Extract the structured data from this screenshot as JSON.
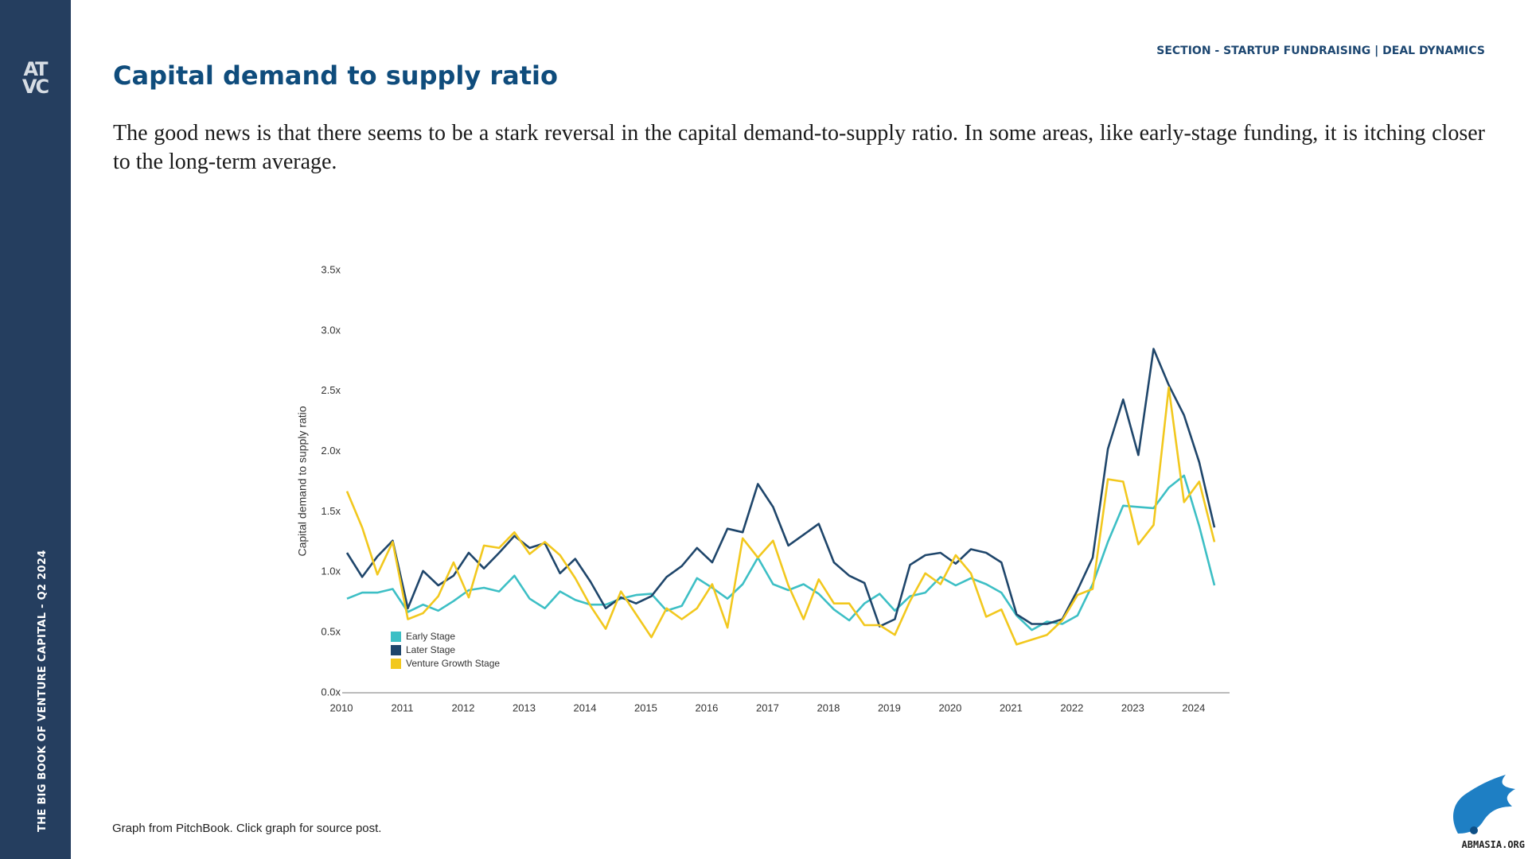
{
  "sidebar": {
    "logo": [
      "AT",
      "VC"
    ],
    "text": "THE BIG BOOK OF VENTURE CAPITAL - Q2 2024"
  },
  "header": {
    "section": "SECTION - STARTUP FUNDRAISING | DEAL DYNAMICS",
    "title": "Capital demand to supply ratio",
    "body": "The good news is that there seems to be a stark reversal in the capital demand-to-supply ratio. In some areas, like early-stage funding, it is itching closer to the long-term average."
  },
  "chart_data": {
    "type": "line",
    "y_label": "Capital demand to supply ratio",
    "categories": [
      "2010",
      null,
      null,
      null,
      "2011",
      null,
      null,
      null,
      "2012",
      null,
      null,
      null,
      "2013",
      null,
      null,
      null,
      "2014",
      null,
      null,
      null,
      "2015",
      null,
      null,
      null,
      "2016",
      null,
      null,
      null,
      "2017",
      null,
      null,
      null,
      "2018",
      null,
      null,
      null,
      "2019",
      null,
      null,
      null,
      "2020",
      null,
      null,
      null,
      "2021",
      null,
      null,
      null,
      "2022",
      null,
      null,
      null,
      "2023",
      null,
      null,
      null,
      "2024",
      null
    ],
    "ylim": [
      0,
      3.5
    ],
    "yticks": [
      {
        "value": 0,
        "label": "0.0x"
      },
      {
        "value": 0.5,
        "label": "0.5x"
      },
      {
        "value": 1,
        "label": "1.0x"
      },
      {
        "value": 1.5,
        "label": "1.5x"
      },
      {
        "value": 2,
        "label": "2.0x"
      },
      {
        "value": 2.5,
        "label": "2.5x"
      },
      {
        "value": 3,
        "label": "3.0x"
      },
      {
        "value": 3.5,
        "label": "3.5x"
      }
    ],
    "grid": false,
    "legend": "lower left",
    "series": [
      {
        "name": "Early Stage",
        "color": "#3dbfc5",
        "values": [
          0.78,
          0.83,
          0.83,
          0.86,
          0.67,
          0.73,
          0.68,
          0.76,
          0.85,
          0.87,
          0.84,
          0.97,
          0.78,
          0.7,
          0.84,
          0.77,
          0.73,
          0.73,
          0.78,
          0.81,
          0.82,
          0.68,
          0.72,
          0.95,
          0.87,
          0.78,
          0.9,
          1.12,
          0.9,
          0.85,
          0.9,
          0.82,
          0.69,
          0.6,
          0.74,
          0.82,
          0.68,
          0.8,
          0.83,
          0.96,
          0.89,
          0.95,
          0.9,
          0.83,
          0.64,
          0.52,
          0.59,
          0.57,
          0.64,
          0.9,
          1.25,
          1.55,
          1.54,
          1.53,
          1.7,
          1.8,
          1.38,
          0.89
        ]
      },
      {
        "name": "Later Stage",
        "color": "#1f466b",
        "values": [
          1.16,
          0.96,
          1.13,
          1.26,
          0.7,
          1.01,
          0.89,
          0.97,
          1.16,
          1.03,
          1.16,
          1.3,
          1.2,
          1.24,
          0.99,
          1.11,
          0.92,
          0.7,
          0.79,
          0.74,
          0.8,
          0.96,
          1.05,
          1.2,
          1.08,
          1.36,
          1.33,
          1.73,
          1.54,
          1.22,
          1.31,
          1.4,
          1.08,
          0.97,
          0.91,
          0.55,
          0.61,
          1.06,
          1.14,
          1.16,
          1.07,
          1.19,
          1.16,
          1.08,
          0.65,
          0.57,
          0.57,
          0.61,
          0.85,
          1.12,
          2.02,
          2.43,
          1.97,
          2.85,
          2.55,
          2.3,
          1.91,
          1.37
        ]
      },
      {
        "name": "Venture Growth Stage",
        "color": "#f2c81e",
        "values": [
          1.67,
          1.37,
          0.98,
          1.25,
          0.61,
          0.66,
          0.8,
          1.08,
          0.79,
          1.22,
          1.2,
          1.33,
          1.15,
          1.25,
          1.14,
          0.95,
          0.72,
          0.53,
          0.84,
          0.65,
          0.46,
          0.7,
          0.61,
          0.7,
          0.9,
          0.54,
          1.28,
          1.12,
          1.26,
          0.89,
          0.61,
          0.94,
          0.74,
          0.74,
          0.56,
          0.56,
          0.48,
          0.76,
          0.99,
          0.9,
          1.14,
          0.99,
          0.63,
          0.69,
          0.4,
          0.44,
          0.48,
          0.6,
          0.81,
          0.86,
          1.77,
          1.75,
          1.23,
          1.39,
          2.53,
          1.58,
          1.75,
          1.25
        ]
      }
    ]
  },
  "footer": {
    "caption": "Graph from PitchBook. Click graph for source post.",
    "watermark": "ABMASIA.ORG"
  }
}
